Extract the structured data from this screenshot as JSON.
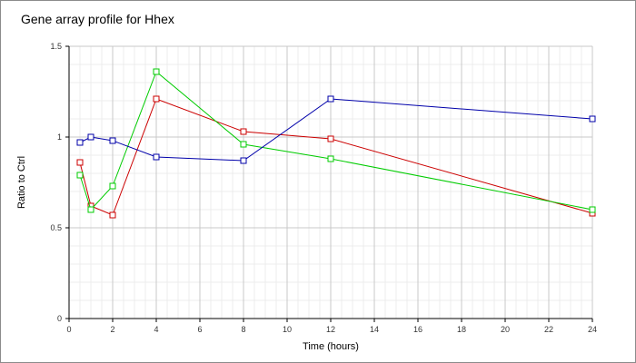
{
  "chart_data": {
    "type": "line",
    "title": "Gene array profile for Hhex",
    "xlabel": "Time (hours)",
    "ylabel": "Ratio to Ctrl",
    "xlim": [
      0,
      24
    ],
    "ylim": [
      0,
      1.5
    ],
    "x_ticks": [
      "0",
      "2",
      "4",
      "6",
      "8",
      "10",
      "12",
      "14",
      "16",
      "18",
      "20",
      "22",
      "24"
    ],
    "y_ticks": [
      "0",
      "0.5",
      "1",
      "1.5"
    ],
    "grid": true,
    "marker": "square",
    "series": [
      {
        "color": "#cc0000",
        "x": [
          0.5,
          1,
          2,
          4,
          8,
          12,
          24
        ],
        "y": [
          0.86,
          0.62,
          0.57,
          1.21,
          1.03,
          0.99,
          0.58
        ]
      },
      {
        "color": "#00cc00",
        "x": [
          0.5,
          1,
          2,
          4,
          8,
          12,
          24
        ],
        "y": [
          0.79,
          0.6,
          0.73,
          1.36,
          0.96,
          0.88,
          0.6
        ]
      },
      {
        "color": "#0000aa",
        "x": [
          0.5,
          1,
          2,
          4,
          8,
          12,
          24
        ],
        "y": [
          0.97,
          1.0,
          0.98,
          0.89,
          0.87,
          1.21,
          1.1
        ]
      }
    ]
  }
}
